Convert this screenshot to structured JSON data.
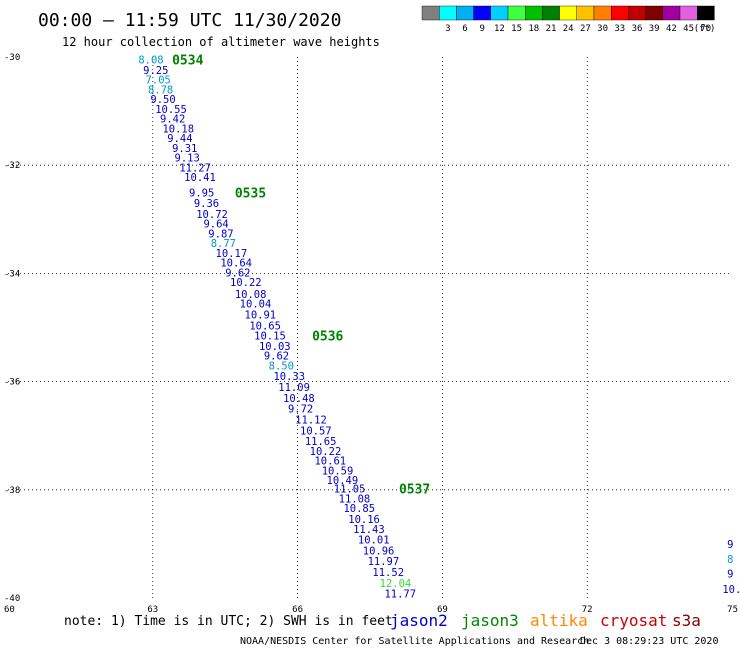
{
  "header": {
    "title": "00:00 – 11:59 UTC 11/30/2020",
    "subtitle": "12 hour collection of altimeter wave heights"
  },
  "colorbar": {
    "unit": "(ft)",
    "bins": [
      {
        "label": "",
        "color": "#808080"
      },
      {
        "label": "3",
        "color": "#00ffff"
      },
      {
        "label": "6",
        "color": "#00b0f0"
      },
      {
        "label": "9",
        "color": "#0000ff"
      },
      {
        "label": "12",
        "color": "#00d0ff"
      },
      {
        "label": "15",
        "color": "#40ff40"
      },
      {
        "label": "18",
        "color": "#00c000"
      },
      {
        "label": "21",
        "color": "#008000"
      },
      {
        "label": "24",
        "color": "#ffff00"
      },
      {
        "label": "27",
        "color": "#ffc000"
      },
      {
        "label": "30",
        "color": "#ff8000"
      },
      {
        "label": "33",
        "color": "#ff0000"
      },
      {
        "label": "36",
        "color": "#c00000"
      },
      {
        "label": "39",
        "color": "#800000"
      },
      {
        "label": "42",
        "color": "#a000a0"
      },
      {
        "label": "45",
        "color": "#e060e0"
      },
      {
        "label": "70",
        "color": "#000000"
      }
    ]
  },
  "footer": {
    "note": "note: 1) Time is in UTC; 2) SWH is in feet",
    "credit": "NOAA/NESDIS Center for Satellite Applications and Research",
    "timestamp": "Dec  3 08:29:23 UTC 2020",
    "satellites": [
      {
        "name": "jason2",
        "color": "#0000cc"
      },
      {
        "name": "jason3",
        "color": "#008800"
      },
      {
        "name": "altika",
        "color": "#ff8800"
      },
      {
        "name": "cryosat",
        "color": "#cc0000"
      },
      {
        "name": "s3a",
        "color": "#880000"
      }
    ]
  },
  "chart_data": {
    "type": "scatter",
    "xlim": [
      60,
      75
    ],
    "ylim": [
      -40,
      -30
    ],
    "x_ticks": [
      60,
      63,
      66,
      69,
      72,
      75
    ],
    "y_ticks": [
      -30,
      -32,
      -34,
      -36,
      -38,
      -40
    ],
    "grid": "dotted",
    "time_labels": [
      {
        "text": "0534",
        "lon": 63.4,
        "lat": -30.05,
        "color": "#008000"
      },
      {
        "text": "0535",
        "lon": 64.7,
        "lat": -32.5,
        "color": "#008000"
      },
      {
        "text": "0536",
        "lon": 66.3,
        "lat": -35.15,
        "color": "#008000"
      },
      {
        "text": "0537",
        "lon": 68.1,
        "lat": -37.98,
        "color": "#008000"
      }
    ],
    "series": [
      {
        "name": "jason2",
        "points": [
          {
            "lon": 62.7,
            "lat": -30.05,
            "swh": "8.08",
            "color": "#0099cc"
          },
          {
            "lon": 62.8,
            "lat": -30.24,
            "swh": "9.25",
            "color": "#0000cc"
          },
          {
            "lon": 62.85,
            "lat": -30.42,
            "swh": "7.05",
            "color": "#0099cc"
          },
          {
            "lon": 62.9,
            "lat": -30.6,
            "swh": "8.78",
            "color": "#0099cc"
          },
          {
            "lon": 62.95,
            "lat": -30.78,
            "swh": "9.50",
            "color": "#0000cc"
          },
          {
            "lon": 63.05,
            "lat": -30.96,
            "swh": "10.55",
            "color": "#0000cc"
          },
          {
            "lon": 63.15,
            "lat": -31.14,
            "swh": "9.42",
            "color": "#0000cc"
          },
          {
            "lon": 63.2,
            "lat": -31.32,
            "swh": "10.18",
            "color": "#0000cc"
          },
          {
            "lon": 63.3,
            "lat": -31.5,
            "swh": "9.44",
            "color": "#0000cc"
          },
          {
            "lon": 63.4,
            "lat": -31.68,
            "swh": "9.31",
            "color": "#0000cc"
          },
          {
            "lon": 63.45,
            "lat": -31.86,
            "swh": "9.13",
            "color": "#0000cc"
          },
          {
            "lon": 63.55,
            "lat": -32.04,
            "swh": "11.27",
            "color": "#0000cc"
          },
          {
            "lon": 63.65,
            "lat": -32.22,
            "swh": "10.41",
            "color": "#0000cc"
          },
          {
            "lon": 63.75,
            "lat": -32.5,
            "swh": "9.95",
            "color": "#0000cc"
          },
          {
            "lon": 63.85,
            "lat": -32.7,
            "swh": "9.36",
            "color": "#0000cc"
          },
          {
            "lon": 63.9,
            "lat": -32.9,
            "swh": "10.72",
            "color": "#0000cc"
          },
          {
            "lon": 64.05,
            "lat": -33.08,
            "swh": "9.64",
            "color": "#0000cc"
          },
          {
            "lon": 64.15,
            "lat": -33.26,
            "swh": "9.87",
            "color": "#0000cc"
          },
          {
            "lon": 64.2,
            "lat": -33.44,
            "swh": "8.77",
            "color": "#0099cc"
          },
          {
            "lon": 64.3,
            "lat": -33.62,
            "swh": "10.17",
            "color": "#0000cc"
          },
          {
            "lon": 64.4,
            "lat": -33.8,
            "swh": "10.64",
            "color": "#0000cc"
          },
          {
            "lon": 64.5,
            "lat": -33.98,
            "swh": "9.62",
            "color": "#0000cc"
          },
          {
            "lon": 64.6,
            "lat": -34.16,
            "swh": "10.22",
            "color": "#0000cc"
          },
          {
            "lon": 64.7,
            "lat": -34.38,
            "swh": "10.08",
            "color": "#0000cc"
          },
          {
            "lon": 64.8,
            "lat": -34.56,
            "swh": "10.04",
            "color": "#0000cc"
          },
          {
            "lon": 64.9,
            "lat": -34.76,
            "swh": "10.91",
            "color": "#0000cc"
          },
          {
            "lon": 65.0,
            "lat": -34.96,
            "swh": "10.65",
            "color": "#0000cc"
          },
          {
            "lon": 65.1,
            "lat": -35.15,
            "swh": "10.15",
            "color": "#0000cc"
          },
          {
            "lon": 65.2,
            "lat": -35.34,
            "swh": "10.03",
            "color": "#0000cc"
          },
          {
            "lon": 65.3,
            "lat": -35.52,
            "swh": "9.62",
            "color": "#0000cc"
          },
          {
            "lon": 65.4,
            "lat": -35.7,
            "swh": "8.50",
            "color": "#0099cc"
          },
          {
            "lon": 65.5,
            "lat": -35.9,
            "swh": "10.33",
            "color": "#0000cc"
          },
          {
            "lon": 65.6,
            "lat": -36.1,
            "swh": "11.09",
            "color": "#0000cc"
          },
          {
            "lon": 65.7,
            "lat": -36.3,
            "swh": "10.48",
            "color": "#0000cc"
          },
          {
            "lon": 65.8,
            "lat": -36.5,
            "swh": "9.72",
            "color": "#0000cc"
          },
          {
            "lon": 65.95,
            "lat": -36.7,
            "swh": "11.12",
            "color": "#0000cc"
          },
          {
            "lon": 66.05,
            "lat": -36.9,
            "swh": "10.57",
            "color": "#0000cc"
          },
          {
            "lon": 66.15,
            "lat": -37.1,
            "swh": "11.65",
            "color": "#0000cc"
          },
          {
            "lon": 66.25,
            "lat": -37.28,
            "swh": "10.22",
            "color": "#0000cc"
          },
          {
            "lon": 66.35,
            "lat": -37.46,
            "swh": "10.61",
            "color": "#0000cc"
          },
          {
            "lon": 66.5,
            "lat": -37.64,
            "swh": "10.59",
            "color": "#0000cc"
          },
          {
            "lon": 66.6,
            "lat": -37.82,
            "swh": "10.49",
            "color": "#0000cc"
          },
          {
            "lon": 66.75,
            "lat": -37.98,
            "swh": "11.05",
            "color": "#0000cc"
          },
          {
            "lon": 66.85,
            "lat": -38.16,
            "swh": "11.08",
            "color": "#0000cc"
          },
          {
            "lon": 66.95,
            "lat": -38.34,
            "swh": "10.85",
            "color": "#0000cc"
          },
          {
            "lon": 67.05,
            "lat": -38.54,
            "swh": "10.16",
            "color": "#0000cc"
          },
          {
            "lon": 67.15,
            "lat": -38.72,
            "swh": "11.43",
            "color": "#0000cc"
          },
          {
            "lon": 67.25,
            "lat": -38.92,
            "swh": "10.01",
            "color": "#0000cc"
          },
          {
            "lon": 67.35,
            "lat": -39.12,
            "swh": "10.96",
            "color": "#0000cc"
          },
          {
            "lon": 67.45,
            "lat": -39.32,
            "swh": "11.97",
            "color": "#0000cc"
          },
          {
            "lon": 67.55,
            "lat": -39.52,
            "swh": "11.52",
            "color": "#0000cc"
          },
          {
            "lon": 67.7,
            "lat": -39.72,
            "swh": "12.04",
            "color": "#33dd33"
          },
          {
            "lon": 67.8,
            "lat": -39.92,
            "swh": "11.77",
            "color": "#0000cc"
          },
          {
            "lon": 74.9,
            "lat": -39.0,
            "swh": "9",
            "color": "#0000cc"
          },
          {
            "lon": 74.9,
            "lat": -39.28,
            "swh": "8",
            "color": "#0099cc"
          },
          {
            "lon": 74.9,
            "lat": -39.55,
            "swh": "9",
            "color": "#0000cc"
          },
          {
            "lon": 74.8,
            "lat": -39.83,
            "swh": "10.",
            "color": "#0000cc"
          }
        ]
      }
    ]
  }
}
